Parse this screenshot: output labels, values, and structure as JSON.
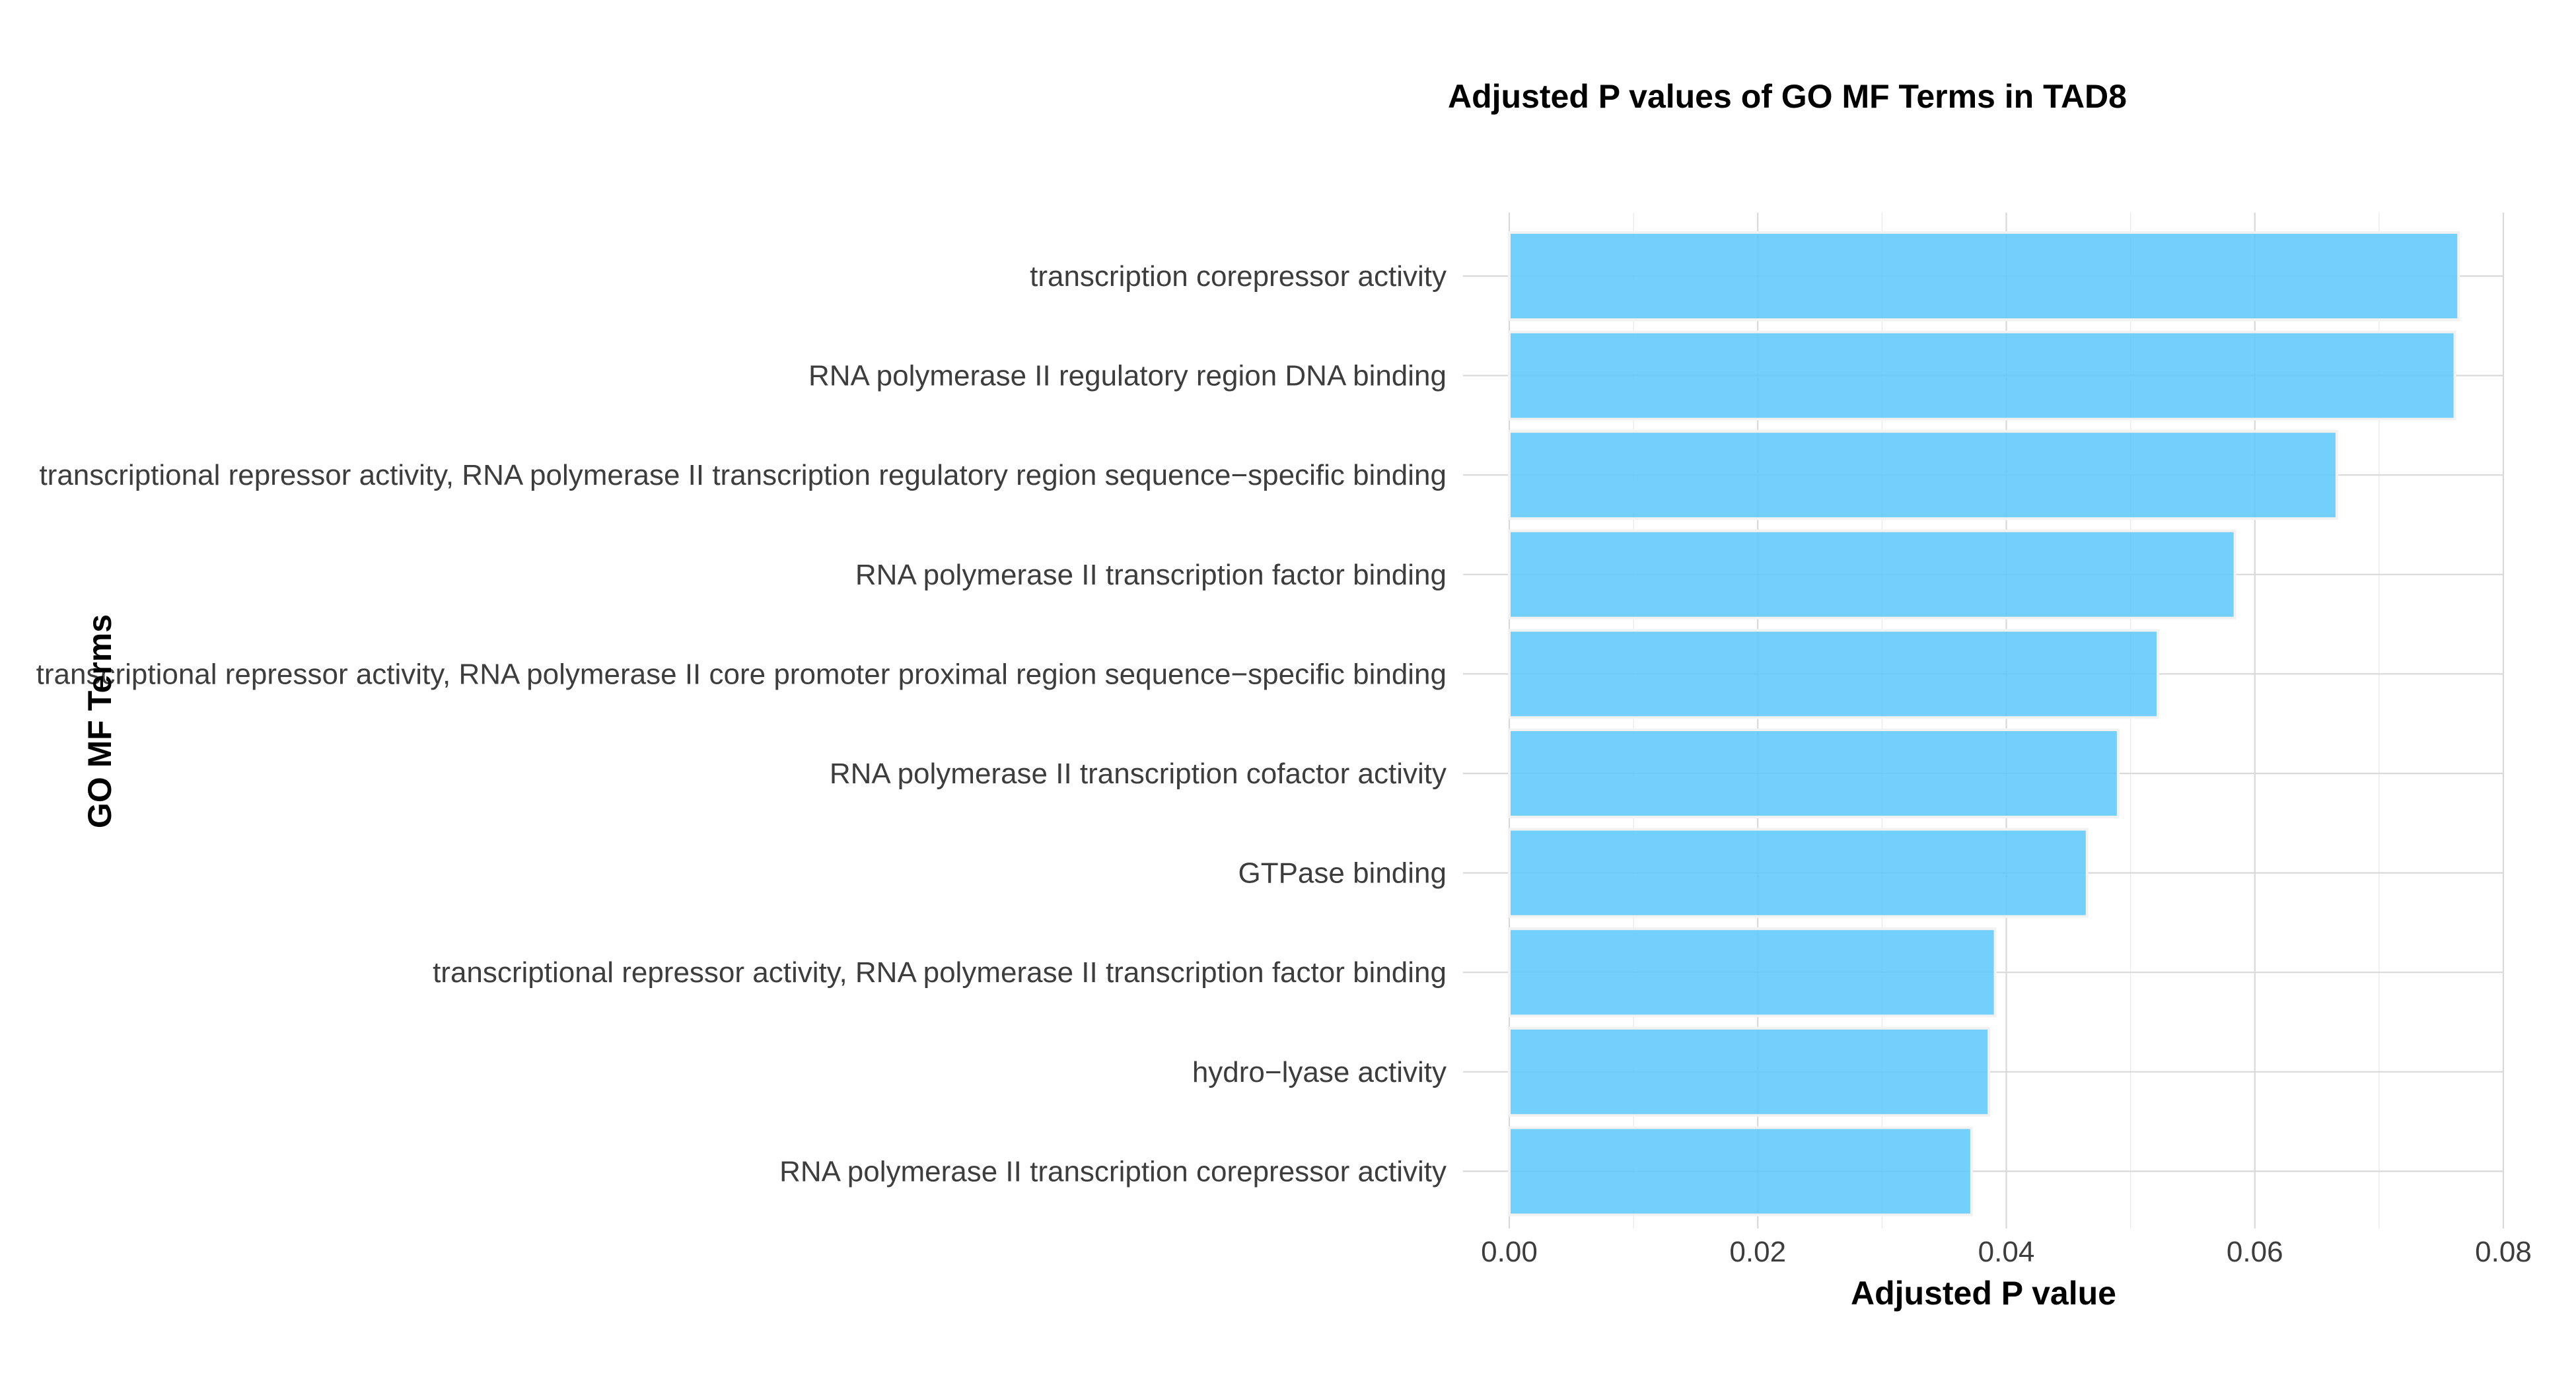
{
  "chart_data": {
    "type": "bar",
    "orientation": "horizontal",
    "title": "Adjusted P values of GO MF Terms in TAD8",
    "xlabel": "Adjusted P value",
    "ylabel": "GO MF Terms",
    "xlim": [
      0,
      0.08
    ],
    "xticks": [
      "0.00",
      "0.02",
      "0.04",
      "0.06",
      "0.08"
    ],
    "grid": true,
    "bar_color": "#5bc8fb",
    "categories": [
      "transcription corepressor activity",
      "RNA polymerase II regulatory region DNA binding",
      "transcriptional repressor activity, RNA polymerase II transcription regulatory region sequence−specific binding",
      "RNA polymerase II transcription factor binding",
      "transcriptional repressor activity, RNA polymerase II core promoter proximal region sequence−specific binding",
      "RNA polymerase II transcription cofactor activity",
      "GTPase binding",
      "transcriptional repressor activity, RNA polymerase II transcription factor binding",
      "hydro−lyase activity",
      "RNA polymerase II transcription corepressor activity"
    ],
    "values": [
      0.0764,
      0.0761,
      0.0666,
      0.0584,
      0.0522,
      0.049,
      0.0465,
      0.0391,
      0.0386,
      0.0372
    ]
  }
}
